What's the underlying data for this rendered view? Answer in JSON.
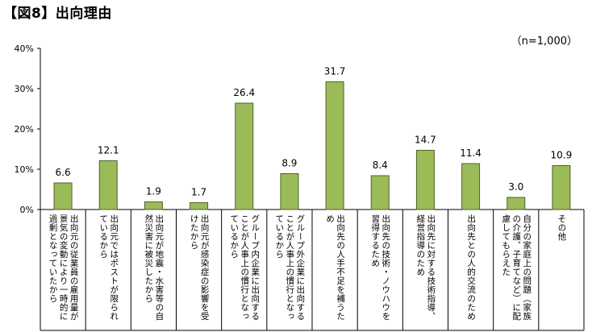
{
  "page": {
    "title": "【図8】出向理由",
    "note": "（n=1,000）"
  },
  "colors": {
    "bar_fill": "#9BBB59",
    "bar_stroke": "#4F6228",
    "axis": "#000000"
  },
  "chart_data": {
    "type": "bar",
    "title": "",
    "xlabel": "",
    "ylabel": "",
    "ylim": [
      0,
      40
    ],
    "yticks": [
      "0%",
      "10%",
      "20%",
      "30%",
      "40%"
    ],
    "grid": false,
    "categories": [
      "出向元の従業員の雇用量が景気の変動により一時的に過剰となっていたから",
      "出向元ではポストが限られているから",
      "出向元が地震・水害等の自然災害に被災したから",
      "出向元が感染症の影響を受けたから",
      "グループ内企業に出向することが人事上の慣行となっているから",
      "グループ外企業に出向することが人事上の慣行となっているから",
      "出向先の人手不足を補うため",
      "出向先の技術・ノウハウを習得するため",
      "出向先に対する技術指導、経営指導のため",
      "出向先との人的交流のため",
      "自分の家庭上の問題（家族の介護、子育てなど）に配慮してもらえた",
      "その他"
    ],
    "values": [
      6.6,
      12.1,
      1.9,
      1.7,
      26.4,
      8.9,
      31.7,
      8.4,
      14.7,
      11.4,
      3.0,
      10.9
    ],
    "data_labels": [
      "6.6",
      "12.1",
      "1.9",
      "1.7",
      "26.4",
      "8.9",
      "31.7",
      "8.4",
      "14.7",
      "11.4",
      "3.0",
      "10.9"
    ]
  }
}
